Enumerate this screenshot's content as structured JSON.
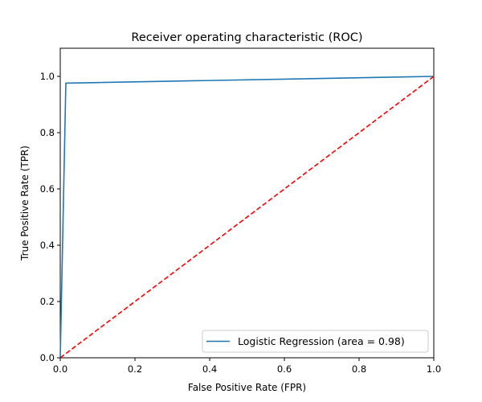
{
  "chart_data": {
    "type": "line",
    "title": "Receiver operating characteristic (ROC)",
    "xlabel": "False Positive Rate (FPR)",
    "ylabel": "True Positive Rate (TPR)",
    "xlim": [
      0.0,
      1.0
    ],
    "ylim": [
      0.0,
      1.1
    ],
    "xticks": [
      0.0,
      0.2,
      0.4,
      0.6,
      0.8,
      1.0
    ],
    "yticks": [
      0.0,
      0.2,
      0.4,
      0.6,
      0.8,
      1.0
    ],
    "xtick_labels": [
      "0.0",
      "0.2",
      "0.4",
      "0.6",
      "0.8",
      "1.0"
    ],
    "ytick_labels": [
      "0.0",
      "0.2",
      "0.4",
      "0.6",
      "0.8",
      "1.0"
    ],
    "grid": false,
    "legend_position": "lower-right",
    "series": [
      {
        "name": "Logistic Regression (area = 0.98)",
        "color": "#1f77b4",
        "style": "solid",
        "x": [
          0.0,
          0.015,
          1.0
        ],
        "y": [
          0.0,
          0.976,
          1.0
        ]
      },
      {
        "color": "#ff0000",
        "style": "dashed",
        "x": [
          0.0,
          1.0
        ],
        "y": [
          0.0,
          1.0
        ]
      }
    ]
  }
}
